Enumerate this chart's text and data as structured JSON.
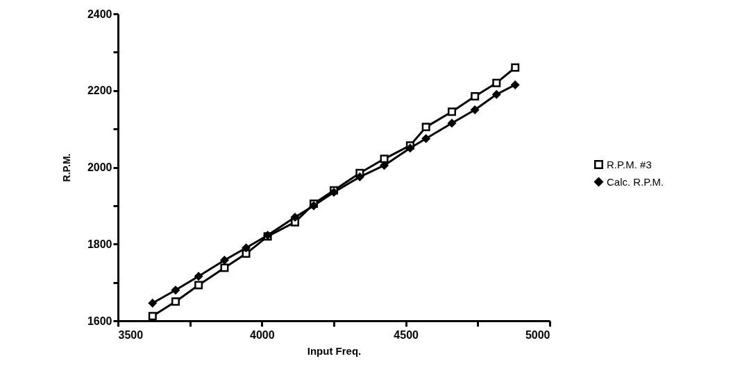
{
  "chart_data": {
    "type": "line",
    "xlabel": "Input Freq.",
    "ylabel": "R.P.M.",
    "x": [
      3620,
      3700,
      3780,
      3870,
      3945,
      4020,
      4115,
      4180,
      4250,
      4340,
      4425,
      4515,
      4570,
      4660,
      4740,
      4815,
      4880
    ],
    "series": [
      {
        "name": "R.P.M. #3",
        "color": "#000000",
        "marker": "square",
        "values": [
          1612,
          1650,
          1693,
          1738,
          1775,
          1820,
          1857,
          1905,
          1940,
          1985,
          2022,
          2057,
          2105,
          2145,
          2185,
          2220,
          2260
        ]
      },
      {
        "name": "Calc. R.P.M.",
        "color": "#000000",
        "marker": "diamond",
        "values": [
          1646,
          1680,
          1716,
          1758,
          1790,
          1823,
          1870,
          1900,
          1935,
          1975,
          2005,
          2050,
          2075,
          2115,
          2150,
          2190,
          2215
        ]
      }
    ],
    "xlim": [
      3500,
      5000
    ],
    "xticks": [
      3500,
      {
        "value": 3750,
        "label": null
      },
      4000,
      {
        "value": 4250,
        "label": null
      },
      4500,
      {
        "value": 4750,
        "label": null
      },
      5000
    ],
    "ylim": [
      1600,
      2400
    ],
    "yticks": [
      1600,
      {
        "value": 1700,
        "label": null
      },
      1800,
      {
        "value": 1900,
        "label": null
      },
      2000,
      {
        "value": 2100,
        "label": null
      },
      2200,
      {
        "value": 2300,
        "label": null
      },
      2400
    ],
    "grid": false,
    "legend": "right",
    "line_style": "solid"
  }
}
